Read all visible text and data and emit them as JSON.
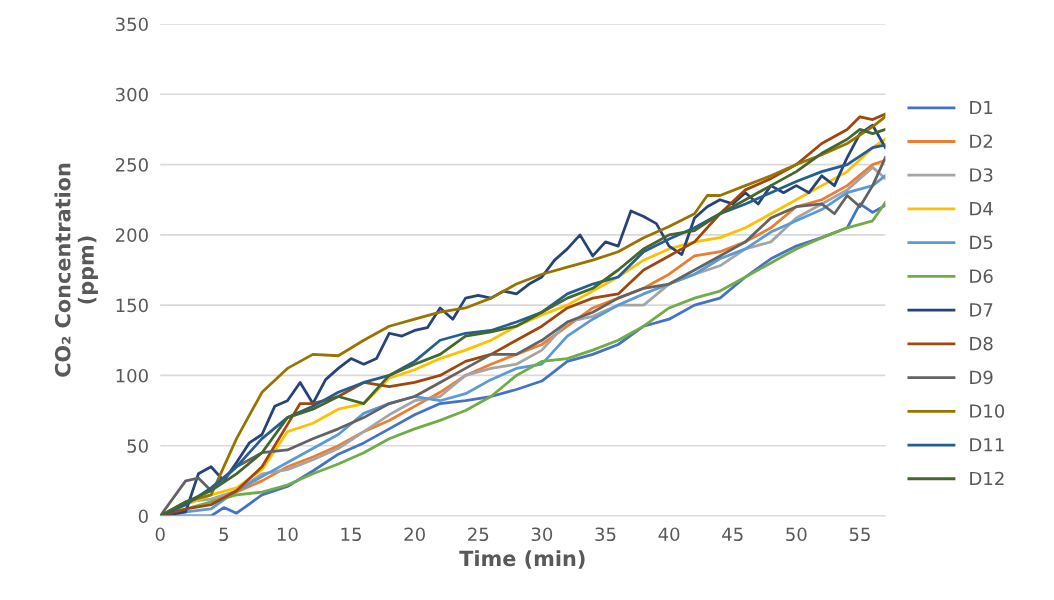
{
  "chart_data": {
    "type": "line",
    "xlabel": "Time (min)",
    "ylabel": "CO₂ Concentration\n(ppm)",
    "xlim": [
      0,
      57
    ],
    "xticks": [
      0,
      5,
      10,
      15,
      20,
      25,
      30,
      35,
      40,
      45,
      50,
      55
    ],
    "ylim": [
      0,
      350
    ],
    "yticks": [
      0,
      50,
      100,
      150,
      200,
      250,
      300,
      350
    ],
    "grid": "y",
    "legend": "right",
    "marker": "none",
    "line_style": "solid",
    "series": [
      {
        "name": "D1",
        "color": "#4472c4",
        "x": [
          0,
          2,
          4,
          5,
          6,
          8,
          10,
          12,
          14,
          16,
          18,
          20,
          22,
          24,
          26,
          28,
          30,
          32,
          34,
          36,
          38,
          40,
          42,
          44,
          46,
          48,
          50,
          52,
          54,
          55,
          56,
          57
        ],
        "values": [
          0,
          0,
          0,
          6,
          2,
          15,
          21,
          32,
          44,
          52,
          62,
          72,
          80,
          82,
          85,
          90,
          96,
          110,
          115,
          122,
          135,
          140,
          150,
          155,
          170,
          183,
          192,
          198,
          205,
          222,
          216,
          221
        ]
      },
      {
        "name": "D2",
        "color": "#ed7d31",
        "x": [
          4,
          6,
          8,
          10,
          12,
          14,
          16,
          18,
          20,
          22,
          24,
          26,
          28,
          30,
          32,
          34,
          36,
          38,
          40,
          42,
          44,
          46,
          48,
          50,
          52,
          54,
          56,
          57
        ],
        "values": [
          10,
          17,
          25,
          35,
          42,
          50,
          60,
          68,
          78,
          88,
          100,
          108,
          115,
          122,
          135,
          148,
          155,
          162,
          172,
          185,
          188,
          195,
          205,
          220,
          225,
          235,
          250,
          253
        ]
      },
      {
        "name": "D3",
        "color": "#a5a5a5",
        "x": [
          0,
          2,
          4,
          6,
          8,
          10,
          12,
          14,
          16,
          18,
          20,
          22,
          24,
          26,
          28,
          30,
          32,
          34,
          36,
          38,
          40,
          42,
          44,
          46,
          48,
          50,
          52,
          54,
          56,
          57
        ],
        "values": [
          0,
          10,
          12,
          18,
          30,
          33,
          40,
          48,
          60,
          72,
          82,
          85,
          100,
          105,
          108,
          118,
          138,
          142,
          150,
          150,
          165,
          172,
          178,
          190,
          195,
          212,
          222,
          232,
          248,
          240
        ]
      },
      {
        "name": "D4",
        "color": "#ffc000",
        "x": [
          0,
          2,
          4,
          6,
          8,
          10,
          12,
          14,
          16,
          18,
          20,
          22,
          24,
          26,
          28,
          30,
          32,
          34,
          36,
          38,
          40,
          42,
          44,
          46,
          48,
          50,
          52,
          54,
          56,
          57
        ],
        "values": [
          0,
          8,
          15,
          20,
          33,
          60,
          66,
          76,
          80,
          98,
          104,
          112,
          118,
          125,
          135,
          143,
          150,
          160,
          170,
          182,
          190,
          195,
          198,
          205,
          215,
          225,
          235,
          245,
          262,
          268
        ]
      },
      {
        "name": "D5",
        "color": "#5b9bd5",
        "x": [
          0,
          2,
          4,
          6,
          8,
          10,
          12,
          14,
          16,
          18,
          20,
          22,
          24,
          26,
          28,
          30,
          32,
          34,
          36,
          38,
          40,
          42,
          44,
          46,
          48,
          50,
          52,
          54,
          56,
          57
        ],
        "values": [
          0,
          3,
          5,
          18,
          28,
          38,
          48,
          58,
          73,
          80,
          85,
          82,
          87,
          97,
          105,
          108,
          128,
          140,
          150,
          158,
          165,
          172,
          183,
          190,
          202,
          210,
          218,
          230,
          235,
          242
        ]
      },
      {
        "name": "D6",
        "color": "#70ad47",
        "x": [
          0,
          2,
          4,
          6,
          8,
          10,
          12,
          14,
          16,
          18,
          20,
          22,
          24,
          26,
          28,
          30,
          32,
          34,
          36,
          38,
          40,
          42,
          44,
          46,
          48,
          50,
          52,
          54,
          56,
          57
        ],
        "values": [
          0,
          5,
          10,
          15,
          17,
          22,
          30,
          37,
          45,
          55,
          62,
          68,
          75,
          85,
          100,
          110,
          112,
          118,
          125,
          135,
          148,
          155,
          160,
          170,
          180,
          190,
          198,
          205,
          210,
          223
        ]
      },
      {
        "name": "D7",
        "color": "#264478",
        "x": [
          0,
          2,
          3,
          4,
          5,
          6,
          7,
          8,
          9,
          10,
          11,
          12,
          13,
          14,
          15,
          16,
          17,
          18,
          19,
          20,
          21,
          22,
          23,
          24,
          25,
          26,
          27,
          28,
          29,
          30,
          31,
          32,
          33,
          34,
          35,
          36,
          37,
          38,
          39,
          40,
          41,
          42,
          43,
          44,
          45,
          46,
          47,
          48,
          49,
          50,
          51,
          52,
          53,
          54,
          55,
          56,
          57
        ],
        "values": [
          0,
          3,
          30,
          35,
          25,
          38,
          52,
          58,
          78,
          82,
          95,
          80,
          97,
          105,
          112,
          108,
          112,
          130,
          128,
          132,
          134,
          148,
          140,
          155,
          157,
          155,
          160,
          158,
          165,
          170,
          182,
          190,
          200,
          185,
          195,
          192,
          217,
          213,
          208,
          192,
          186,
          212,
          220,
          225,
          222,
          230,
          222,
          235,
          230,
          235,
          230,
          242,
          235,
          255,
          272,
          278,
          262
        ]
      },
      {
        "name": "D8",
        "color": "#9e480e",
        "x": [
          0,
          2,
          4,
          6,
          8,
          10,
          11,
          12,
          14,
          16,
          18,
          20,
          22,
          24,
          26,
          28,
          30,
          32,
          34,
          36,
          38,
          40,
          42,
          44,
          46,
          48,
          50,
          52,
          54,
          55,
          56,
          57
        ],
        "values": [
          0,
          5,
          8,
          18,
          35,
          65,
          80,
          80,
          85,
          95,
          92,
          95,
          100,
          110,
          115,
          125,
          135,
          148,
          155,
          158,
          175,
          185,
          195,
          215,
          232,
          240,
          250,
          265,
          275,
          284,
          282,
          286
        ]
      },
      {
        "name": "D9",
        "color": "#636363",
        "x": [
          0,
          2,
          3,
          4,
          6,
          8,
          10,
          12,
          14,
          16,
          18,
          20,
          22,
          24,
          26,
          28,
          30,
          32,
          34,
          36,
          38,
          40,
          42,
          44,
          46,
          48,
          50,
          52,
          53,
          54,
          55,
          56,
          57
        ],
        "values": [
          0,
          25,
          27,
          18,
          35,
          45,
          47,
          55,
          62,
          70,
          80,
          85,
          95,
          105,
          115,
          115,
          125,
          138,
          145,
          155,
          162,
          165,
          175,
          185,
          195,
          212,
          220,
          222,
          215,
          228,
          220,
          235,
          255
        ]
      },
      {
        "name": "D10",
        "color": "#997300",
        "x": [
          0,
          2,
          4,
          6,
          8,
          10,
          12,
          14,
          16,
          18,
          20,
          22,
          24,
          26,
          28,
          30,
          32,
          34,
          36,
          38,
          40,
          42,
          43,
          44,
          46,
          48,
          50,
          52,
          54,
          56,
          57
        ],
        "values": [
          0,
          10,
          15,
          55,
          88,
          105,
          115,
          114,
          125,
          135,
          140,
          145,
          148,
          155,
          165,
          172,
          177,
          182,
          188,
          198,
          206,
          215,
          228,
          228,
          235,
          242,
          250,
          257,
          265,
          277,
          284
        ]
      },
      {
        "name": "D11",
        "color": "#255e91",
        "x": [
          0,
          2,
          4,
          6,
          8,
          10,
          12,
          14,
          16,
          18,
          20,
          22,
          24,
          26,
          28,
          30,
          32,
          34,
          36,
          38,
          40,
          42,
          44,
          46,
          48,
          50,
          52,
          54,
          56,
          57
        ],
        "values": [
          0,
          8,
          20,
          35,
          55,
          70,
          78,
          88,
          95,
          100,
          110,
          125,
          130,
          132,
          138,
          145,
          158,
          165,
          170,
          188,
          197,
          205,
          215,
          222,
          230,
          238,
          245,
          250,
          262,
          264
        ]
      },
      {
        "name": "D12",
        "color": "#43682b",
        "x": [
          0,
          2,
          4,
          6,
          8,
          10,
          12,
          14,
          16,
          18,
          20,
          22,
          24,
          26,
          28,
          30,
          32,
          34,
          36,
          38,
          40,
          42,
          44,
          46,
          48,
          50,
          52,
          54,
          55,
          56,
          57
        ],
        "values": [
          0,
          10,
          18,
          30,
          45,
          70,
          76,
          85,
          80,
          100,
          108,
          115,
          128,
          131,
          135,
          145,
          155,
          162,
          175,
          190,
          200,
          203,
          215,
          225,
          235,
          245,
          258,
          268,
          275,
          272,
          275
        ]
      }
    ]
  }
}
